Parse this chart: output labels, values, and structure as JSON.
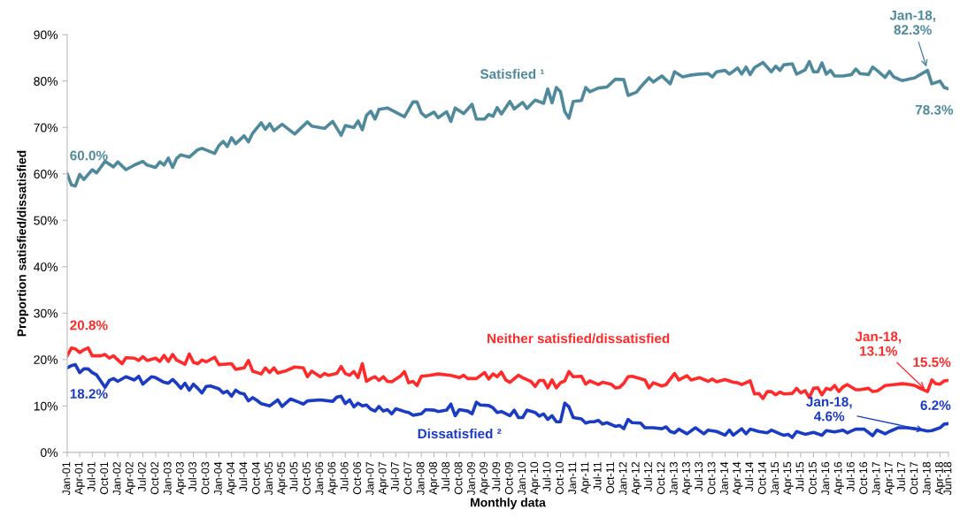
{
  "chart_data": {
    "type": "line",
    "xlabel": "Monthly data",
    "ylabel": "Proportion satisfied/dissatisfied",
    "xlim": [
      "2001-01",
      "2018-06"
    ],
    "ylim": [
      0,
      90
    ],
    "yticks": [
      {
        "value": 0,
        "label": "0%"
      },
      {
        "value": 10,
        "label": "10%"
      },
      {
        "value": 20,
        "label": "20%"
      },
      {
        "value": 30,
        "label": "30%"
      },
      {
        "value": 40,
        "label": "40%"
      },
      {
        "value": 50,
        "label": "50%"
      },
      {
        "value": 60,
        "label": "60%"
      },
      {
        "value": 70,
        "label": "70%"
      },
      {
        "value": 80,
        "label": "80%"
      },
      {
        "value": 90,
        "label": "90%"
      }
    ],
    "xticks": [
      {
        "value": "2001-01",
        "label": "Jan-01"
      },
      {
        "value": "2001-04",
        "label": "Apr-01"
      },
      {
        "value": "2001-07",
        "label": "Jul-01"
      },
      {
        "value": "2001-10",
        "label": "Oct-01"
      },
      {
        "value": "2002-01",
        "label": "Jan-02"
      },
      {
        "value": "2002-04",
        "label": "Apr-02"
      },
      {
        "value": "2002-07",
        "label": "Jul-02"
      },
      {
        "value": "2002-10",
        "label": "Oct-02"
      },
      {
        "value": "2003-01",
        "label": "Jan-03"
      },
      {
        "value": "2003-04",
        "label": "Apr-03"
      },
      {
        "value": "2003-07",
        "label": "Jul-03"
      },
      {
        "value": "2003-10",
        "label": "Oct-03"
      },
      {
        "value": "2004-01",
        "label": "Jan-04"
      },
      {
        "value": "2004-04",
        "label": "Apr-04"
      },
      {
        "value": "2004-07",
        "label": "Jul-04"
      },
      {
        "value": "2004-10",
        "label": "Oct-04"
      },
      {
        "value": "2005-01",
        "label": "Jan-05"
      },
      {
        "value": "2005-04",
        "label": "Apr-05"
      },
      {
        "value": "2005-07",
        "label": "Jul-05"
      },
      {
        "value": "2005-10",
        "label": "Oct-05"
      },
      {
        "value": "2006-01",
        "label": "Jan-06"
      },
      {
        "value": "2006-04",
        "label": "Apr-06"
      },
      {
        "value": "2006-07",
        "label": "Jul-06"
      },
      {
        "value": "2006-10",
        "label": "Oct-06"
      },
      {
        "value": "2007-01",
        "label": "Jan-07"
      },
      {
        "value": "2007-04",
        "label": "Apr-07"
      },
      {
        "value": "2007-07",
        "label": "Jul-07"
      },
      {
        "value": "2007-10",
        "label": "Oct-07"
      },
      {
        "value": "2008-01",
        "label": "Jan-08"
      },
      {
        "value": "2008-04",
        "label": "Apr-08"
      },
      {
        "value": "2008-07",
        "label": "Jul-08"
      },
      {
        "value": "2008-10",
        "label": "Oct-08"
      },
      {
        "value": "2009-01",
        "label": "Jan-09"
      },
      {
        "value": "2009-04",
        "label": "Apr-09"
      },
      {
        "value": "2009-07",
        "label": "Jul-09"
      },
      {
        "value": "2009-10",
        "label": "Oct-09"
      },
      {
        "value": "2010-01",
        "label": "Jan-10"
      },
      {
        "value": "2010-04",
        "label": "Apr-10"
      },
      {
        "value": "2010-07",
        "label": "Jul-10"
      },
      {
        "value": "2010-10",
        "label": "Oct-10"
      },
      {
        "value": "2011-01",
        "label": "Jan-11"
      },
      {
        "value": "2011-04",
        "label": "Apr-11"
      },
      {
        "value": "2011-07",
        "label": "Jul-11"
      },
      {
        "value": "2011-10",
        "label": "Oct-11"
      },
      {
        "value": "2012-01",
        "label": "Jan-12"
      },
      {
        "value": "2012-04",
        "label": "Apr-12"
      },
      {
        "value": "2012-07",
        "label": "Jul-12"
      },
      {
        "value": "2012-10",
        "label": "Oct-12"
      },
      {
        "value": "2013-01",
        "label": "Jan-13"
      },
      {
        "value": "2013-04",
        "label": "Apr-13"
      },
      {
        "value": "2013-07",
        "label": "Jul-13"
      },
      {
        "value": "2013-10",
        "label": "Oct-13"
      },
      {
        "value": "2014-01",
        "label": "Jan-14"
      },
      {
        "value": "2014-04",
        "label": "Apr-14"
      },
      {
        "value": "2014-07",
        "label": "Jul-14"
      },
      {
        "value": "2014-10",
        "label": "Oct-14"
      },
      {
        "value": "2015-01",
        "label": "Jan-15"
      },
      {
        "value": "2015-04",
        "label": "Apr-15"
      },
      {
        "value": "2015-07",
        "label": "Jul-15"
      },
      {
        "value": "2015-10",
        "label": "Oct-15"
      },
      {
        "value": "2016-01",
        "label": "Jan-16"
      },
      {
        "value": "2016-04",
        "label": "Apr-16"
      },
      {
        "value": "2016-07",
        "label": "Jul-16"
      },
      {
        "value": "2016-10",
        "label": "Oct-16"
      },
      {
        "value": "2017-01",
        "label": "Jan-17"
      },
      {
        "value": "2017-04",
        "label": "Apr-17"
      },
      {
        "value": "2017-07",
        "label": "Jul-17"
      },
      {
        "value": "2017-10",
        "label": "Oct-17"
      },
      {
        "value": "2018-01",
        "label": "Jan-18"
      },
      {
        "value": "2018-04",
        "label": "Apr-18"
      },
      {
        "value": "2018-06",
        "label": "Jun-18"
      }
    ],
    "grid": false,
    "legend": false,
    "marker": "none",
    "line_style": "solid",
    "series": [
      {
        "name": "Satisfied ¹",
        "color": "#4f8a9c",
        "x": [
          "2001-01",
          "2001-02",
          "2001-03",
          "2001-04",
          "2001-05",
          "2001-07",
          "2001-08",
          "2001-10",
          "2001-12",
          "2002-01",
          "2002-03",
          "2002-05",
          "2002-07",
          "2002-08",
          "2002-10",
          "2002-11",
          "2002-12",
          "2003-01",
          "2003-02",
          "2003-03",
          "2003-04",
          "2003-06",
          "2003-08",
          "2003-09",
          "2003-12",
          "2004-01",
          "2004-02",
          "2004-03",
          "2004-04",
          "2004-05",
          "2004-07",
          "2004-08",
          "2004-09",
          "2004-11",
          "2004-12",
          "2005-01",
          "2005-02",
          "2005-04",
          "2005-07",
          "2005-10",
          "2005-11",
          "2006-02",
          "2006-04",
          "2006-06",
          "2006-07",
          "2006-09",
          "2006-10",
          "2006-11",
          "2006-12",
          "2007-01",
          "2007-02",
          "2007-03",
          "2007-05",
          "2007-09",
          "2007-11",
          "2007-12",
          "2008-01",
          "2008-02",
          "2008-04",
          "2008-05",
          "2008-07",
          "2008-08",
          "2008-09",
          "2008-11",
          "2009-01",
          "2009-02",
          "2009-04",
          "2009-05",
          "2009-06",
          "2009-07",
          "2009-08",
          "2009-10",
          "2009-11",
          "2010-01",
          "2010-02",
          "2010-04",
          "2010-06",
          "2010-07",
          "2010-08",
          "2010-09",
          "2010-10",
          "2010-11",
          "2010-12",
          "2011-01",
          "2011-03",
          "2011-04",
          "2011-05",
          "2011-07",
          "2011-09",
          "2011-11",
          "2012-01",
          "2012-02",
          "2012-04",
          "2012-05",
          "2012-07",
          "2012-08",
          "2012-10",
          "2012-12",
          "2013-01",
          "2013-03",
          "2013-05",
          "2013-07",
          "2013-09",
          "2013-10",
          "2013-11",
          "2014-01",
          "2014-02",
          "2014-04",
          "2014-05",
          "2014-06",
          "2014-07",
          "2014-08",
          "2014-10",
          "2014-12",
          "2015-01",
          "2015-02",
          "2015-03",
          "2015-05",
          "2015-06",
          "2015-08",
          "2015-09",
          "2015-10",
          "2015-11",
          "2015-12",
          "2016-01",
          "2016-02",
          "2016-03",
          "2016-05",
          "2016-07",
          "2016-08",
          "2016-09",
          "2016-11",
          "2016-12",
          "2017-01",
          "2017-03",
          "2017-04",
          "2017-05",
          "2017-07",
          "2017-10",
          "2018-01",
          "2018-02",
          "2018-04",
          "2018-05",
          "2018-06"
        ],
        "values": [
          60.0,
          57.6,
          57.4,
          59.9,
          58.8,
          60.9,
          60.2,
          62.7,
          61.5,
          62.6,
          60.9,
          61.9,
          62.7,
          61.9,
          61.4,
          62.6,
          61.9,
          63.4,
          61.4,
          63.3,
          64.1,
          63.6,
          65.2,
          65.5,
          64.4,
          66.1,
          67.0,
          65.9,
          67.8,
          66.5,
          68.2,
          66.9,
          68.8,
          71.0,
          69.6,
          70.8,
          69.3,
          70.7,
          68.6,
          71.2,
          70.3,
          69.8,
          71.3,
          68.3,
          70.4,
          70.0,
          71.4,
          69.5,
          72.6,
          73.5,
          71.8,
          73.9,
          74.2,
          72.3,
          75.5,
          75.5,
          73.1,
          72.3,
          73.3,
          72.1,
          73.4,
          71.3,
          74.2,
          73.0,
          75.0,
          71.8,
          71.8,
          72.8,
          72.4,
          74.3,
          72.9,
          75.6,
          74.0,
          75.4,
          74.1,
          75.9,
          75.2,
          78.3,
          75.3,
          78.6,
          77.7,
          73.4,
          72.0,
          75.6,
          75.8,
          78.6,
          77.7,
          78.5,
          78.7,
          80.4,
          80.3,
          76.9,
          77.6,
          78.7,
          80.7,
          79.8,
          81.1,
          79.4,
          82.0,
          80.9,
          81.3,
          81.5,
          81.6,
          80.9,
          82.0,
          82.3,
          81.5,
          82.8,
          81.5,
          83.0,
          81.4,
          82.9,
          84.0,
          82.0,
          83.2,
          82.3,
          83.5,
          83.7,
          81.5,
          82.4,
          84.2,
          82.0,
          82.0,
          83.9,
          81.5,
          82.3,
          81.1,
          81.1,
          81.4,
          82.6,
          81.6,
          81.4,
          83.0,
          82.3,
          80.8,
          82.1,
          80.9,
          80.1,
          80.7,
          82.3,
          79.4,
          80.0,
          78.6,
          78.3
        ]
      },
      {
        "name": "Neither satisfied/dissatisfied",
        "color": "#ff2a2a",
        "x": [
          "2001-01",
          "2001-02",
          "2001-03",
          "2001-04",
          "2001-05",
          "2001-06",
          "2001-07",
          "2001-09",
          "2001-10",
          "2001-11",
          "2001-12",
          "2002-02",
          "2002-03",
          "2002-05",
          "2002-06",
          "2002-07",
          "2002-08",
          "2002-10",
          "2002-11",
          "2002-12",
          "2003-01",
          "2003-02",
          "2003-03",
          "2003-05",
          "2003-06",
          "2003-07",
          "2003-08",
          "2003-09",
          "2003-10",
          "2003-12",
          "2004-01",
          "2004-04",
          "2004-05",
          "2004-07",
          "2004-08",
          "2004-09",
          "2004-11",
          "2004-12",
          "2005-01",
          "2005-02",
          "2005-03",
          "2005-05",
          "2005-07",
          "2005-09",
          "2005-10",
          "2005-11",
          "2006-01",
          "2006-02",
          "2006-03",
          "2006-05",
          "2006-06",
          "2006-07",
          "2006-08",
          "2006-09",
          "2006-10",
          "2006-11",
          "2006-12",
          "2007-01",
          "2007-02",
          "2007-03",
          "2007-04",
          "2007-05",
          "2007-06",
          "2007-08",
          "2007-09",
          "2007-10",
          "2007-11",
          "2007-12",
          "2008-01",
          "2008-03",
          "2008-05",
          "2008-08",
          "2008-10",
          "2008-11",
          "2008-12",
          "2009-02",
          "2009-04",
          "2009-05",
          "2009-06",
          "2009-07",
          "2009-08",
          "2009-09",
          "2009-10",
          "2009-12",
          "2010-01",
          "2010-03",
          "2010-04",
          "2010-05",
          "2010-06",
          "2010-07",
          "2010-08",
          "2010-09",
          "2010-10",
          "2010-11",
          "2010-12",
          "2011-01",
          "2011-03",
          "2011-04",
          "2011-05",
          "2011-07",
          "2011-08",
          "2011-10",
          "2011-11",
          "2011-12",
          "2012-01",
          "2012-02",
          "2012-03",
          "2012-06",
          "2012-07",
          "2012-08",
          "2012-10",
          "2012-11",
          "2013-01",
          "2013-02",
          "2013-04",
          "2013-05",
          "2013-07",
          "2013-09",
          "2013-10",
          "2013-11",
          "2014-01",
          "2014-03",
          "2014-04",
          "2014-05",
          "2014-07",
          "2014-08",
          "2014-09",
          "2014-10",
          "2014-11",
          "2014-12",
          "2015-01",
          "2015-02",
          "2015-03",
          "2015-05",
          "2015-06",
          "2015-07",
          "2015-08",
          "2015-09",
          "2015-10",
          "2015-11",
          "2015-12",
          "2016-01",
          "2016-02",
          "2016-03",
          "2016-04",
          "2016-05",
          "2016-06",
          "2016-08",
          "2016-09",
          "2016-11",
          "2016-12",
          "2017-01",
          "2017-02",
          "2017-03",
          "2017-05",
          "2017-07",
          "2017-09",
          "2017-10",
          "2017-11",
          "2018-01",
          "2018-02",
          "2018-03",
          "2018-04",
          "2018-05",
          "2018-06"
        ],
        "values": [
          20.8,
          22.5,
          22.3,
          21.5,
          22.1,
          22.5,
          20.8,
          20.8,
          21.1,
          20.3,
          20.8,
          19.1,
          20.4,
          20.3,
          19.8,
          20.6,
          19.8,
          20.3,
          19.6,
          20.9,
          19.6,
          21.1,
          19.9,
          19.0,
          21.2,
          19.4,
          19.1,
          19.9,
          19.5,
          20.5,
          18.9,
          19.1,
          17.9,
          18.2,
          19.8,
          17.5,
          16.9,
          18.2,
          17.2,
          18.2,
          17.1,
          17.6,
          18.4,
          18.2,
          16.3,
          17.5,
          16.3,
          17.0,
          16.6,
          17.0,
          18.5,
          17.0,
          16.6,
          17.4,
          16.1,
          19.1,
          15.3,
          15.9,
          16.3,
          15.5,
          16.3,
          15.3,
          15.2,
          16.4,
          17.4,
          15.0,
          15.3,
          14.4,
          16.4,
          16.6,
          16.9,
          16.6,
          16.1,
          16.6,
          15.9,
          15.9,
          17.2,
          15.8,
          16.9,
          16.3,
          17.3,
          15.6,
          15.1,
          16.6,
          16.1,
          15.3,
          14.2,
          15.5,
          15.5,
          13.9,
          15.6,
          13.9,
          15.0,
          15.4,
          17.4,
          16.3,
          16.4,
          14.7,
          15.4,
          14.6,
          15.1,
          14.7,
          13.9,
          14.0,
          14.9,
          16.3,
          16.4,
          15.6,
          13.9,
          15.0,
          14.3,
          14.6,
          17.0,
          15.6,
          16.5,
          15.6,
          16.1,
          15.3,
          15.8,
          15.2,
          15.7,
          15.1,
          15.0,
          14.6,
          15.4,
          12.6,
          12.7,
          11.6,
          13.1,
          13.1,
          12.4,
          13.0,
          12.6,
          12.7,
          13.8,
          12.8,
          13.3,
          11.8,
          13.8,
          13.9,
          12.4,
          13.8,
          13.5,
          14.4,
          13.1,
          14.1,
          14.6,
          13.5,
          13.5,
          13.8,
          13.1,
          13.2,
          13.8,
          14.4,
          14.6,
          14.8,
          14.6,
          14.4,
          13.9,
          13.1,
          15.6,
          14.8,
          14.7,
          15.4,
          15.5
        ]
      },
      {
        "name": "Dissatisfied ²",
        "color": "#1a3cc4",
        "x": [
          "2001-01",
          "2001-02",
          "2001-03",
          "2001-04",
          "2001-05",
          "2001-06",
          "2001-07",
          "2001-08",
          "2001-10",
          "2001-11",
          "2001-12",
          "2002-01",
          "2002-03",
          "2002-05",
          "2002-06",
          "2002-07",
          "2002-08",
          "2002-09",
          "2002-10",
          "2002-12",
          "2003-01",
          "2003-02",
          "2003-03",
          "2003-04",
          "2003-05",
          "2003-06",
          "2003-07",
          "2003-08",
          "2003-09",
          "2003-10",
          "2003-11",
          "2004-01",
          "2004-02",
          "2004-03",
          "2004-04",
          "2004-05",
          "2004-06",
          "2004-07",
          "2004-08",
          "2004-09",
          "2004-10",
          "2004-11",
          "2005-01",
          "2005-03",
          "2005-04",
          "2005-06",
          "2005-08",
          "2005-09",
          "2005-10",
          "2006-01",
          "2006-04",
          "2006-05",
          "2006-06",
          "2006-07",
          "2006-08",
          "2006-09",
          "2006-10",
          "2006-11",
          "2006-12",
          "2007-01",
          "2007-02",
          "2007-03",
          "2007-04",
          "2007-05",
          "2007-06",
          "2007-07",
          "2007-09",
          "2007-10",
          "2007-11",
          "2008-01",
          "2008-02",
          "2008-04",
          "2008-05",
          "2008-07",
          "2008-08",
          "2008-09",
          "2008-10",
          "2008-12",
          "2009-01",
          "2009-02",
          "2009-03",
          "2009-05",
          "2009-06",
          "2009-07",
          "2009-08",
          "2009-10",
          "2009-11",
          "2009-12",
          "2010-01",
          "2010-02",
          "2010-04",
          "2010-05",
          "2010-06",
          "2010-07",
          "2010-08",
          "2010-09",
          "2010-10",
          "2010-11",
          "2010-12",
          "2011-01",
          "2011-03",
          "2011-04",
          "2011-05",
          "2011-06",
          "2011-07",
          "2011-08",
          "2011-09",
          "2011-11",
          "2011-12",
          "2012-01",
          "2012-02",
          "2012-03",
          "2012-05",
          "2012-06",
          "2012-08",
          "2012-10",
          "2012-11",
          "2012-12",
          "2013-01",
          "2013-02",
          "2013-04",
          "2013-06",
          "2013-08",
          "2013-09",
          "2013-11",
          "2014-01",
          "2014-02",
          "2014-03",
          "2014-05",
          "2014-06",
          "2014-07",
          "2014-09",
          "2014-11",
          "2014-12",
          "2015-02",
          "2015-03",
          "2015-04",
          "2015-05",
          "2015-06",
          "2015-08",
          "2015-10",
          "2015-12",
          "2016-01",
          "2016-03",
          "2016-05",
          "2016-06",
          "2016-07",
          "2016-08",
          "2016-10",
          "2016-12",
          "2017-01",
          "2017-03",
          "2017-04",
          "2017-06",
          "2017-08",
          "2017-10",
          "2017-12",
          "2018-01",
          "2018-02",
          "2018-04",
          "2018-05",
          "2018-06"
        ],
        "values": [
          18.2,
          18.7,
          18.9,
          17.2,
          18.0,
          18.0,
          17.2,
          16.7,
          14.0,
          15.5,
          15.9,
          15.3,
          16.3,
          15.6,
          16.4,
          14.7,
          15.5,
          16.3,
          16.1,
          15.1,
          14.9,
          15.7,
          14.9,
          13.8,
          14.9,
          13.4,
          14.7,
          13.8,
          12.8,
          14.2,
          14.3,
          13.7,
          12.8,
          13.2,
          12.1,
          13.4,
          12.8,
          12.6,
          11.1,
          11.8,
          11.2,
          10.5,
          10.0,
          11.3,
          9.9,
          11.5,
          10.8,
          10.4,
          11.1,
          11.3,
          11.0,
          11.9,
          12.1,
          10.5,
          11.3,
          9.8,
          10.6,
          10.0,
          10.2,
          9.3,
          8.9,
          9.9,
          8.9,
          9.2,
          8.3,
          9.4,
          8.8,
          8.6,
          8.0,
          8.3,
          9.2,
          9.1,
          8.8,
          9.1,
          10.4,
          7.9,
          9.2,
          8.9,
          8.3,
          10.8,
          10.2,
          10.1,
          9.6,
          8.6,
          8.8,
          7.9,
          9.1,
          7.5,
          7.5,
          9.1,
          8.6,
          7.8,
          8.3,
          7.1,
          7.9,
          6.6,
          6.6,
          10.6,
          9.8,
          7.5,
          7.2,
          6.3,
          6.6,
          6.6,
          6.9,
          6.1,
          6.4,
          5.6,
          5.8,
          5.1,
          7.1,
          6.4,
          6.3,
          5.3,
          5.3,
          5.1,
          5.5,
          4.5,
          4.2,
          5.0,
          4.0,
          5.3,
          4.0,
          4.8,
          4.5,
          3.7,
          4.8,
          3.7,
          5.1,
          4.0,
          5.0,
          4.5,
          4.2,
          4.8,
          4.0,
          3.7,
          3.9,
          3.2,
          4.5,
          3.9,
          4.3,
          3.7,
          4.7,
          4.4,
          4.8,
          4.2,
          4.6,
          5.0,
          5.0,
          3.6,
          4.8,
          4.0,
          4.5,
          5.3,
          5.3,
          5.1,
          4.8,
          4.6,
          4.7,
          5.3,
          6.1,
          6.2
        ]
      }
    ],
    "annotations": [
      {
        "text": "60.0%",
        "x": "2001-01",
        "y": 60.0
      },
      {
        "text": "Jan-18,\n82.3%",
        "x": "2018-01",
        "y": 82.3
      },
      {
        "text": "78.3%",
        "x": "2018-06",
        "y": 78.3
      },
      {
        "text": "20.8%",
        "x": "2001-01",
        "y": 20.8
      },
      {
        "text": "18.2%",
        "x": "2001-01",
        "y": 18.2
      },
      {
        "text": "Jan-18,\n13.1%",
        "x": "2018-01",
        "y": 13.1
      },
      {
        "text": "15.5%",
        "x": "2018-06",
        "y": 15.5
      },
      {
        "text": "Jan-18,\n4.6%",
        "x": "2018-01",
        "y": 4.6
      },
      {
        "text": "6.2%",
        "x": "2018-06",
        "y": 6.2
      }
    ]
  }
}
